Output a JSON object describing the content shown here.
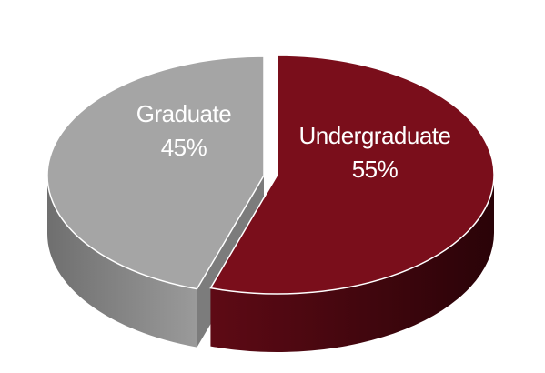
{
  "chart_data": {
    "type": "pie",
    "title": "",
    "legend": "none",
    "slices": [
      {
        "name": "Undergraduate",
        "value": 55,
        "label": "55%",
        "color": "#7a0e1b"
      },
      {
        "name": "Graduate",
        "value": 45,
        "label": "45%",
        "color": "#a5a5a5"
      }
    ]
  }
}
